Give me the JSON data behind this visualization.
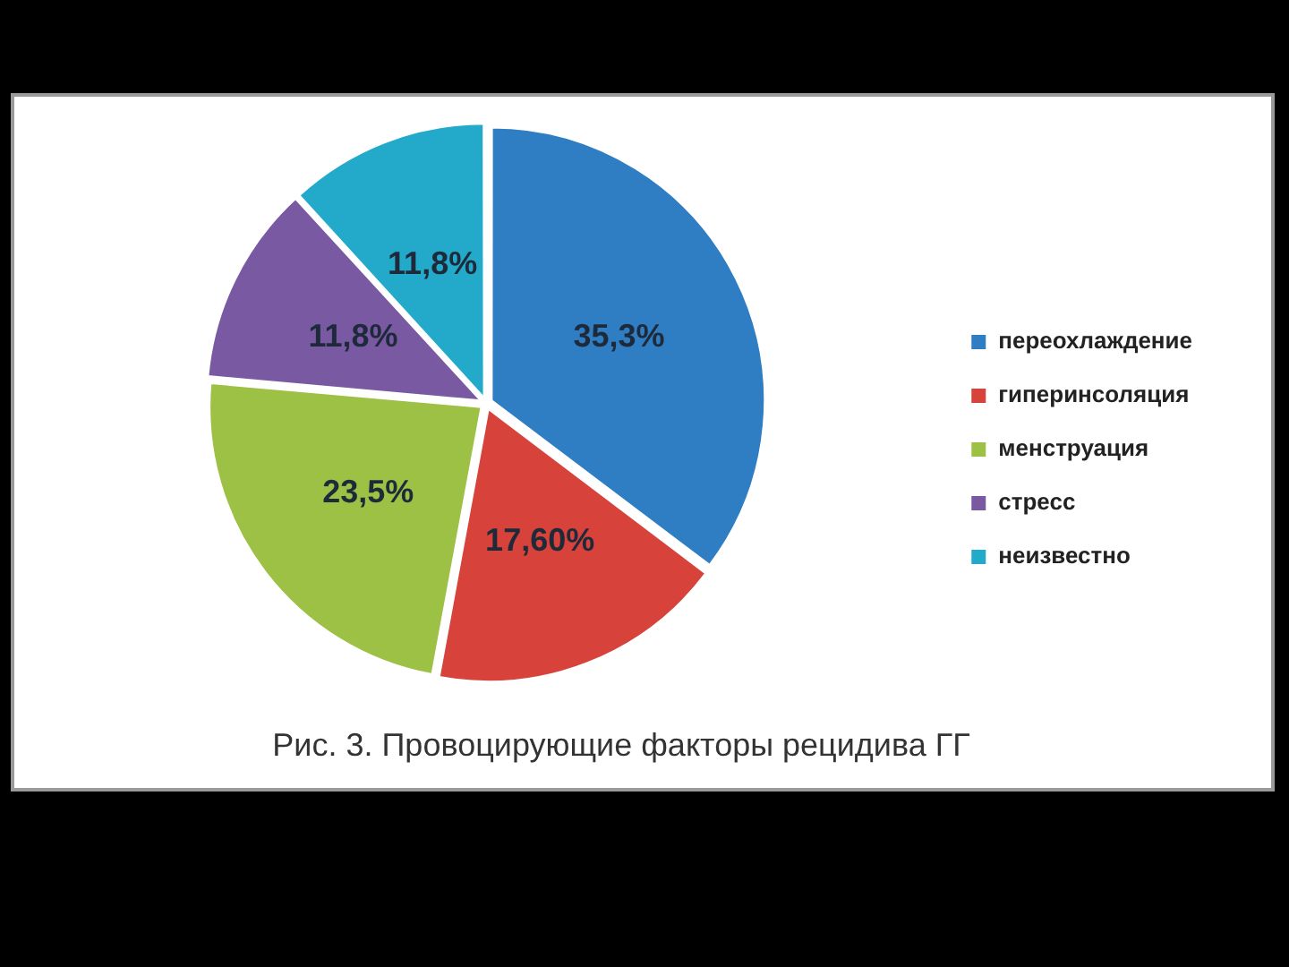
{
  "chart_data": {
    "type": "pie",
    "title": "Рис. 3. Провоцирующие факторы рецидива ГГ",
    "categories": [
      "переохлаждение",
      "гиперинсоляция",
      "менструация",
      "стресс",
      "неизвестно"
    ],
    "values": [
      35.3,
      17.6,
      23.5,
      11.8,
      11.8
    ],
    "colors": [
      "#2f7dc3",
      "#d7423b",
      "#9dc145",
      "#7a59a3",
      "#23aacb"
    ],
    "value_labels": [
      "35,3%",
      "17,60%",
      "23,5%",
      "11,8%",
      "11,8%"
    ],
    "legend": "right"
  }
}
